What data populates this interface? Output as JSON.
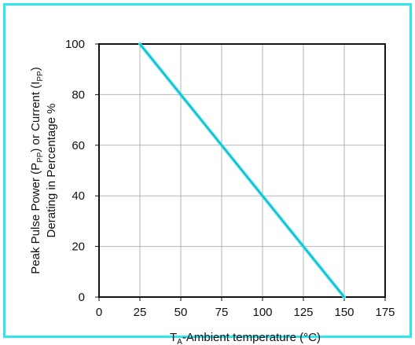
{
  "colors": {
    "frame": "#2ee6ec",
    "derating_line": "#2ee6ec",
    "derating_line_core": "#1a2a66",
    "grid": "#b5b5b5",
    "axes": "#111111"
  },
  "chart_data": {
    "type": "line",
    "title": "",
    "xlabel": {
      "prefix": "T",
      "sub": "A",
      "suffix": "-Ambient temperature (°C)"
    },
    "ylabel_line1": {
      "parts": [
        {
          "text": "Peak Pulse Power (P",
          "sub": false
        },
        {
          "text": "PP",
          "sub": true
        },
        {
          "text": ") or Current (I",
          "sub": false
        },
        {
          "text": "PP",
          "sub": true
        },
        {
          "text": ")",
          "sub": false
        }
      ]
    },
    "ylabel_line2": "Derating in Percentage %",
    "x_ticks": [
      "0",
      "25",
      "50",
      "75",
      "100",
      "125",
      "150",
      "175"
    ],
    "y_ticks": [
      "0",
      "20",
      "40",
      "60",
      "80",
      "100"
    ],
    "xlim": [
      0,
      175
    ],
    "ylim": [
      0,
      100
    ],
    "grid": true,
    "series": [
      {
        "x": [
          25,
          150
        ],
        "y": [
          100,
          0
        ]
      }
    ]
  }
}
